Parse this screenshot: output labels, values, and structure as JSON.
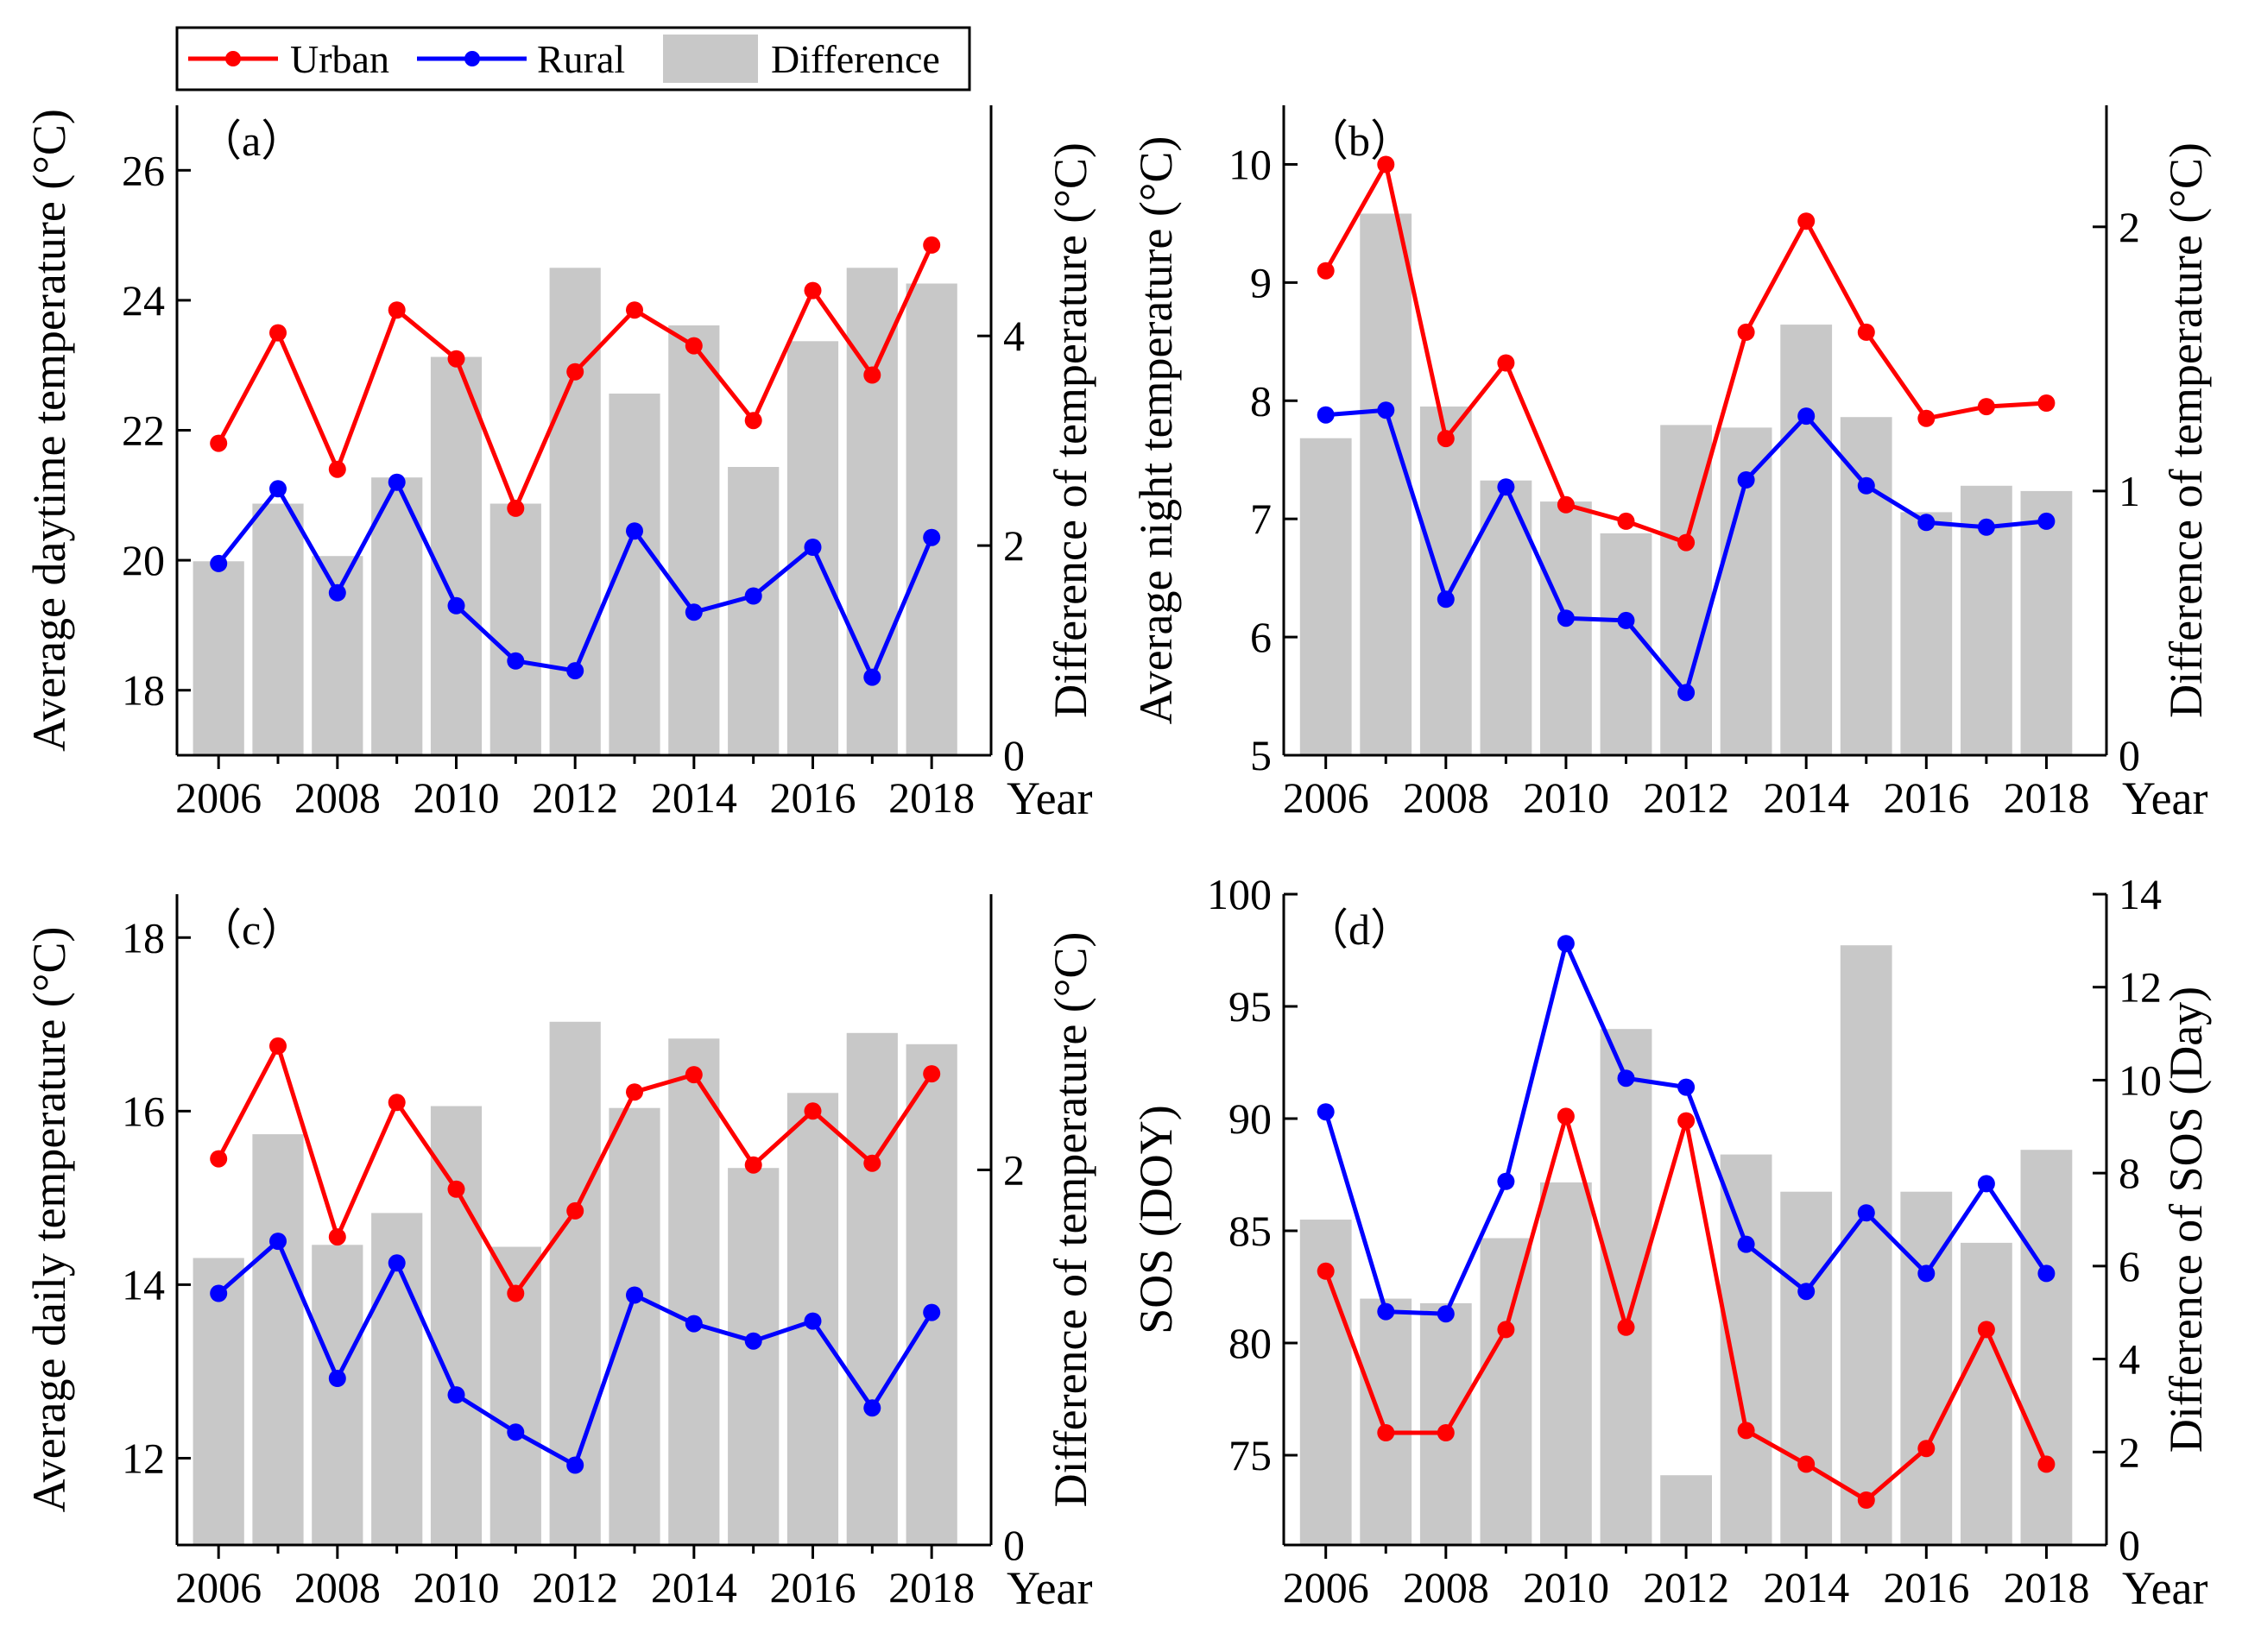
{
  "legend": {
    "urban": "Urban",
    "rural": "Rural",
    "difference": "Difference"
  },
  "colors": {
    "urban": "#ff0000",
    "rural": "#0000ff",
    "difference": "#c8c8c8"
  },
  "chart_data": [
    {
      "type": "bar+line",
      "panel_label": "（a）",
      "x_title": "Year",
      "ylabel": "Average daytime temperature (°C)",
      "ylabel_right": "Difference of temperature (°C)",
      "ylim": [
        17,
        27
      ],
      "yticks": [
        "18",
        "20",
        "22",
        "24",
        "26"
      ],
      "ylim_right": [
        0,
        6.2
      ],
      "yticks_right": [
        "0",
        "2",
        "4"
      ],
      "categories": [
        2006,
        2007,
        2008,
        2009,
        2010,
        2011,
        2012,
        2013,
        2014,
        2015,
        2016,
        2017,
        2018
      ],
      "xtick_labels": [
        "2006",
        "2008",
        "2010",
        "2012",
        "2014",
        "2016",
        "2018"
      ],
      "series": [
        {
          "name": "Urban",
          "values": [
            21.8,
            23.5,
            21.4,
            23.85,
            23.1,
            20.8,
            22.9,
            23.85,
            23.3,
            22.15,
            24.15,
            22.85,
            24.85
          ]
        },
        {
          "name": "Rural",
          "values": [
            19.95,
            21.1,
            19.5,
            21.2,
            19.3,
            18.45,
            18.3,
            20.45,
            19.2,
            19.45,
            20.2,
            18.2,
            20.35
          ]
        }
      ],
      "bars": {
        "name": "Difference",
        "values": [
          1.85,
          2.4,
          1.9,
          2.65,
          3.8,
          2.4,
          4.65,
          3.45,
          4.1,
          2.75,
          3.95,
          4.65,
          4.5
        ]
      }
    },
    {
      "type": "bar+line",
      "panel_label": "（b）",
      "x_title": "Year",
      "ylabel": "Average night temperature (°C)",
      "ylabel_right": "Difference of temperature (°C)",
      "ylim": [
        5,
        10.5
      ],
      "yticks": [
        "5",
        "6",
        "7",
        "8",
        "9",
        "10"
      ],
      "ylim_right": [
        0,
        2.46
      ],
      "yticks_right": [
        "0",
        "1",
        "2"
      ],
      "categories": [
        2006,
        2007,
        2008,
        2009,
        2010,
        2011,
        2012,
        2013,
        2014,
        2015,
        2016,
        2017,
        2018
      ],
      "xtick_labels": [
        "2006",
        "2008",
        "2010",
        "2012",
        "2014",
        "2016",
        "2018"
      ],
      "series": [
        {
          "name": "Urban",
          "values": [
            9.1,
            10.0,
            7.68,
            8.32,
            7.12,
            6.98,
            6.8,
            8.58,
            9.52,
            8.58,
            7.85,
            7.95,
            7.98
          ]
        },
        {
          "name": "Rural",
          "values": [
            7.88,
            7.92,
            6.32,
            7.27,
            6.16,
            6.14,
            5.53,
            7.33,
            7.87,
            7.28,
            6.97,
            6.93,
            6.98
          ]
        }
      ],
      "bars": {
        "name": "Difference",
        "values": [
          1.2,
          2.05,
          1.32,
          1.04,
          0.96,
          0.84,
          1.25,
          1.24,
          1.63,
          1.28,
          0.92,
          1.02,
          1.0
        ]
      }
    },
    {
      "type": "bar+line",
      "panel_label": "（c）",
      "x_title": "Year",
      "ylabel": "Average daily temperature (°C)",
      "ylabel_right": "Difference of temperature (°C)",
      "ylim": [
        11,
        18.5
      ],
      "yticks": [
        "12",
        "14",
        "16",
        "18"
      ],
      "ylim_right": [
        0,
        3.47
      ],
      "yticks_right": [
        "0",
        "2"
      ],
      "categories": [
        2006,
        2007,
        2008,
        2009,
        2010,
        2011,
        2012,
        2013,
        2014,
        2015,
        2016,
        2017,
        2018
      ],
      "xtick_labels": [
        "2006",
        "2008",
        "2010",
        "2012",
        "2014",
        "2016",
        "2018"
      ],
      "series": [
        {
          "name": "Urban",
          "values": [
            15.45,
            16.75,
            14.55,
            16.1,
            15.1,
            13.9,
            14.85,
            16.22,
            16.42,
            15.38,
            16.0,
            15.4,
            16.43
          ]
        },
        {
          "name": "Rural",
          "values": [
            13.9,
            14.5,
            12.92,
            14.25,
            12.73,
            12.3,
            11.92,
            13.88,
            13.55,
            13.35,
            13.58,
            12.58,
            13.68
          ]
        }
      ],
      "bars": {
        "name": "Difference",
        "values": [
          1.53,
          2.19,
          1.6,
          1.77,
          2.34,
          1.59,
          2.79,
          2.33,
          2.7,
          2.01,
          2.41,
          2.73,
          2.67
        ]
      }
    },
    {
      "type": "bar+line",
      "panel_label": "（d）",
      "x_title": "Year",
      "ylabel": "SOS (DOY)",
      "ylabel_right": "Difference of SOS (Day)",
      "ylim": [
        71,
        100
      ],
      "yticks": [
        "75",
        "80",
        "85",
        "90",
        "95",
        "100"
      ],
      "ylim_right": [
        0,
        14
      ],
      "yticks_right": [
        "0",
        "2",
        "4",
        "6",
        "8",
        "10",
        "12",
        "14"
      ],
      "categories": [
        2006,
        2007,
        2008,
        2009,
        2010,
        2011,
        2012,
        2013,
        2014,
        2015,
        2016,
        2017,
        2018
      ],
      "xtick_labels": [
        "2006",
        "2008",
        "2010",
        "2012",
        "2014",
        "2016",
        "2018"
      ],
      "series": [
        {
          "name": "Urban",
          "values": [
            83.2,
            76.0,
            76.0,
            80.6,
            90.1,
            80.7,
            89.9,
            76.1,
            74.6,
            73.0,
            75.3,
            80.6,
            74.6
          ]
        },
        {
          "name": "Rural",
          "values": [
            90.3,
            81.4,
            81.3,
            87.2,
            97.8,
            91.8,
            91.4,
            84.4,
            82.3,
            85.8,
            83.1,
            87.1,
            83.1
          ]
        }
      ],
      "bars": {
        "name": "Difference",
        "values": [
          7.0,
          5.3,
          5.2,
          6.6,
          7.8,
          11.1,
          1.5,
          8.4,
          7.6,
          12.9,
          7.6,
          6.5,
          8.5
        ]
      }
    }
  ]
}
